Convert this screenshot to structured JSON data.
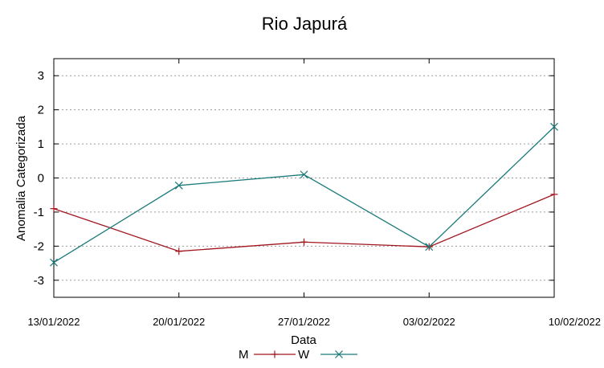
{
  "chart_data": {
    "type": "line",
    "title": "Rio Japurá",
    "xlabel": "Data",
    "ylabel": "Anomalia Categorizada",
    "categories": [
      "13/01/2022",
      "20/01/2022",
      "27/01/2022",
      "03/02/2022",
      "10/02/2022"
    ],
    "ylim": [
      -3.5,
      3.5
    ],
    "yticks": [
      3,
      2,
      1,
      0,
      -1,
      -2,
      -3
    ],
    "ytick_labels": [
      "3",
      "2",
      "1",
      "0",
      "-1",
      "-2",
      "-3"
    ],
    "grid": true,
    "legend_position": "bottom",
    "series": [
      {
        "name": "M",
        "marker": "+",
        "color": "#a0161e",
        "values": [
          -0.9,
          -2.15,
          -1.88,
          -2.02,
          -0.48
        ]
      },
      {
        "name": "W",
        "marker": "x",
        "color": "#1a7a7a",
        "values": [
          -2.48,
          -0.22,
          0.1,
          -2.02,
          1.5
        ]
      }
    ]
  }
}
